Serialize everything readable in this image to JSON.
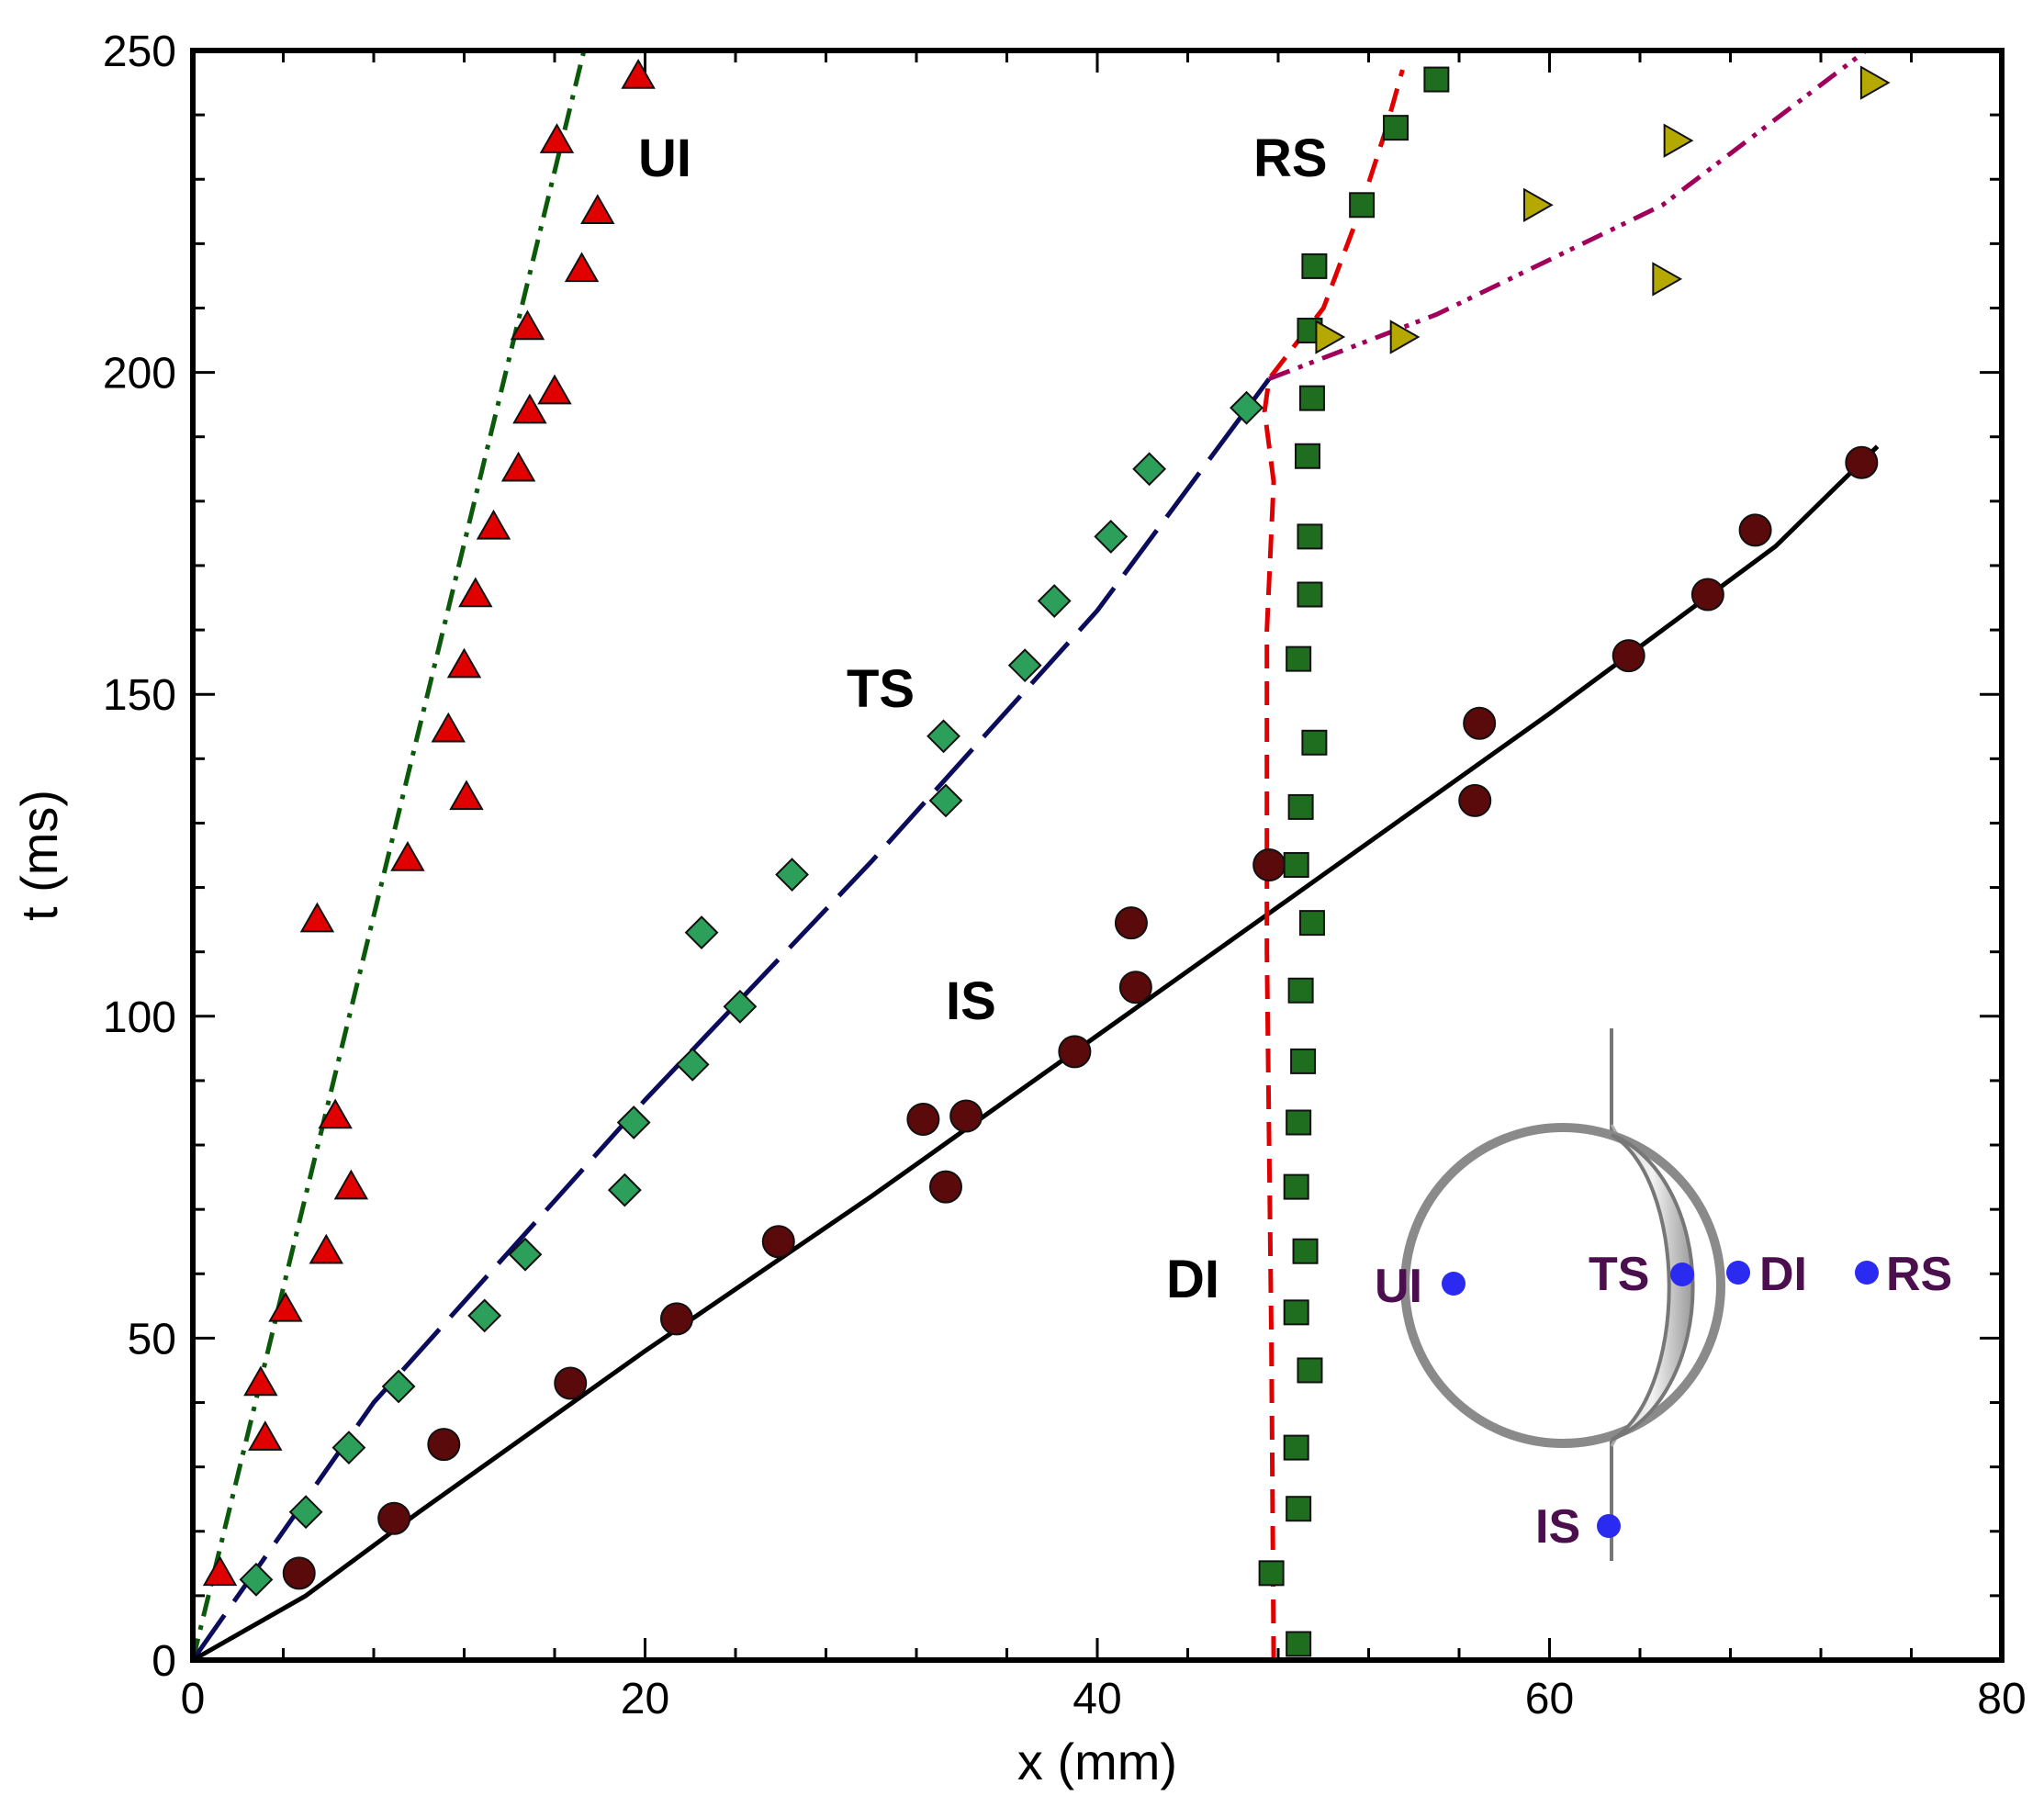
{
  "chart_data": {
    "type": "scatter",
    "xlabel": "x (mm)",
    "ylabel": "t (ms)",
    "xlim": [
      0,
      80
    ],
    "ylim": [
      0,
      250
    ],
    "xticks": [
      0,
      20,
      40,
      60,
      80
    ],
    "yticks": [
      0,
      50,
      100,
      150,
      200,
      250
    ],
    "series": [
      {
        "name": "UI",
        "marker": "triangle-up",
        "color": "#e00000",
        "points": [
          [
            1.2,
            13.5
          ],
          [
            3.0,
            43
          ],
          [
            3.2,
            34.5
          ],
          [
            4.1,
            54.5
          ],
          [
            5.5,
            115
          ],
          [
            5.9,
            63.5
          ],
          [
            6.3,
            84.5
          ],
          [
            7.0,
            73.5
          ],
          [
            9.5,
            124.5
          ],
          [
            11.3,
            144.5
          ],
          [
            12.1,
            134
          ],
          [
            12.0,
            154.5
          ],
          [
            12.5,
            165.5
          ],
          [
            13.3,
            176
          ],
          [
            14.4,
            185
          ],
          [
            14.9,
            194
          ],
          [
            14.8,
            207
          ],
          [
            16.0,
            197
          ],
          [
            16.1,
            236
          ],
          [
            17.2,
            216
          ],
          [
            17.9,
            225
          ],
          [
            19.7,
            246
          ]
        ]
      },
      {
        "name": "TS",
        "marker": "diamond",
        "color": "#2ca05a",
        "points": [
          [
            2.8,
            12.5
          ],
          [
            5.0,
            23
          ],
          [
            6.9,
            33
          ],
          [
            9.1,
            42.5
          ],
          [
            12.9,
            53.5
          ],
          [
            14.7,
            63
          ],
          [
            19.1,
            73
          ],
          [
            19.5,
            83.5
          ],
          [
            22.1,
            92.5
          ],
          [
            24.2,
            101.5
          ],
          [
            22.5,
            113
          ],
          [
            26.5,
            122
          ],
          [
            33.3,
            133.5
          ],
          [
            33.2,
            143.5
          ],
          [
            36.8,
            154.5
          ],
          [
            38.1,
            164.5
          ],
          [
            40.6,
            174.5
          ],
          [
            42.3,
            185
          ],
          [
            46.6,
            194.5
          ]
        ]
      },
      {
        "name": "IS",
        "marker": "circle",
        "color": "#5a0a0a",
        "points": [
          [
            4.7,
            13.5
          ],
          [
            8.9,
            22
          ],
          [
            11.1,
            33.5
          ],
          [
            16.7,
            43
          ],
          [
            21.4,
            53
          ],
          [
            25.9,
            65
          ],
          [
            32.3,
            84
          ],
          [
            33.3,
            73.5
          ],
          [
            34.2,
            84.5
          ],
          [
            39.0,
            94.5
          ],
          [
            41.5,
            114.5
          ],
          [
            41.7,
            104.5
          ],
          [
            47.6,
            123.5
          ],
          [
            56.7,
            133.5
          ],
          [
            56.9,
            145.5
          ],
          [
            63.5,
            156
          ],
          [
            67.0,
            165.5
          ],
          [
            69.1,
            175.5
          ],
          [
            73.8,
            186
          ]
        ]
      },
      {
        "name": "DI",
        "marker": "square",
        "color": "#1f6e1f",
        "points": [
          [
            47.7,
            13.5
          ],
          [
            48.9,
            2.5
          ],
          [
            48.9,
            23.5
          ],
          [
            48.8,
            33
          ],
          [
            49.4,
            45
          ],
          [
            48.8,
            54
          ],
          [
            49.2,
            63.5
          ],
          [
            48.8,
            73.5
          ],
          [
            48.9,
            83.5
          ],
          [
            49.1,
            93
          ],
          [
            49.0,
            104
          ],
          [
            49.5,
            114.5
          ],
          [
            48.8,
            123.5
          ],
          [
            49.0,
            132.5
          ],
          [
            49.6,
            142.5
          ],
          [
            48.9,
            155.5
          ],
          [
            49.4,
            165.5
          ],
          [
            49.4,
            174.5
          ],
          [
            49.3,
            187
          ],
          [
            49.5,
            196
          ],
          [
            49.4,
            206.5
          ],
          [
            49.6,
            216.5
          ],
          [
            51.7,
            226
          ],
          [
            53.2,
            238
          ],
          [
            55.0,
            245.5
          ]
        ]
      },
      {
        "name": "RS",
        "marker": "triangle-right",
        "color": "#b5a900",
        "points": [
          [
            50.2,
            205.5
          ],
          [
            53.5,
            205.5
          ],
          [
            59.4,
            226
          ],
          [
            65.1,
            214.5
          ],
          [
            65.6,
            236
          ],
          [
            74.3,
            245
          ]
        ]
      }
    ],
    "lines": [
      {
        "name": "UI fit",
        "style": "dash-dot",
        "color": "#0b5a0b",
        "points": [
          [
            0,
            0
          ],
          [
            17.3,
            250
          ]
        ]
      },
      {
        "name": "TS fit",
        "style": "long-dash",
        "color": "#0c0c5c",
        "points": [
          [
            0,
            0
          ],
          [
            8,
            40
          ],
          [
            20,
            87
          ],
          [
            30,
            124
          ],
          [
            40,
            163
          ],
          [
            47.6,
            199
          ]
        ]
      },
      {
        "name": "IS fit",
        "style": "solid",
        "color": "#000000",
        "points": [
          [
            0,
            0
          ],
          [
            5,
            10
          ],
          [
            10,
            23
          ],
          [
            20,
            48
          ],
          [
            30,
            72
          ],
          [
            40,
            97
          ],
          [
            50,
            122
          ],
          [
            60,
            147
          ],
          [
            70,
            173
          ],
          [
            74.5,
            188.5
          ]
        ]
      },
      {
        "name": "DI fit",
        "style": "dashed",
        "color": "#e00000",
        "points": [
          [
            47.8,
            0
          ],
          [
            47.7,
            50
          ],
          [
            47.5,
            110
          ],
          [
            47.5,
            160
          ],
          [
            47.8,
            183
          ],
          [
            47.4,
            194
          ],
          [
            47.6,
            199
          ],
          [
            50.0,
            210
          ],
          [
            51.5,
            224
          ],
          [
            52.7,
            237
          ],
          [
            53.5,
            247
          ]
        ]
      },
      {
        "name": "RS fit",
        "style": "dash-dot-dot",
        "color": "#a0005a",
        "points": [
          [
            47.6,
            199
          ],
          [
            55,
            209
          ],
          [
            65,
            226
          ],
          [
            74,
            250
          ]
        ]
      }
    ],
    "annotations": [
      "UI",
      "RS",
      "TS",
      "IS",
      "DI"
    ],
    "inset": {
      "labels": [
        "UI",
        "TS",
        "DI",
        "RS",
        "IS"
      ]
    }
  }
}
